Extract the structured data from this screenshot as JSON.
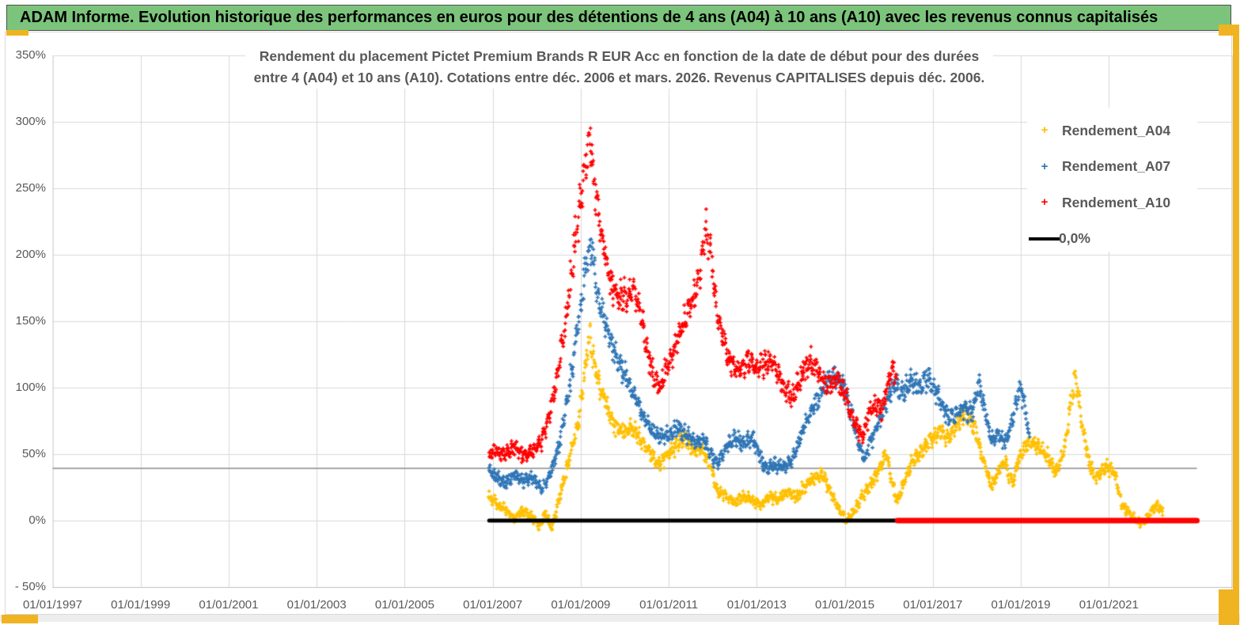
{
  "header": {
    "title": "ADAM Informe. Evolution historique des performances en euros pour des détentions de 4 ans (A04) à 10 ans (A10) avec les revenus connus capitalisés"
  },
  "chart_data": {
    "type": "scatter",
    "title_line1": "Rendement du placement Pictet Premium Brands R EUR Acc en fonction de la date de début pour des durées",
    "title_line2": "entre 4 (A04) et 10 ans (A10). Cotations entre déc. 2006 et mars. 2026. Revenus CAPITALISES depuis déc. 2006.",
    "grid": true,
    "legend_position": "upper right",
    "x_axis": {
      "label_format": "dd/mm/yyyy",
      "tick_labels": [
        "01/01/1997",
        "01/01/1999",
        "01/01/2001",
        "01/01/2003",
        "01/01/2005",
        "01/01/2007",
        "01/01/2009",
        "01/01/2011",
        "01/01/2013",
        "01/01/2015",
        "01/01/2017",
        "01/01/2019",
        "01/01/2021"
      ],
      "tick_years": [
        1997,
        1999,
        2001,
        2003,
        2005,
        2007,
        2009,
        2011,
        2013,
        2015,
        2017,
        2019,
        2021
      ],
      "min_year": 1997.0,
      "max_year": 2023.8
    },
    "y_axis": {
      "tick_labels": [
        "350%",
        "300%",
        "250%",
        "200%",
        "150%",
        "100%",
        "50%",
        "0%",
        "- 50%"
      ],
      "tick_values": [
        350,
        300,
        250,
        200,
        150,
        100,
        50,
        0,
        -50
      ],
      "min": -50,
      "max": 350,
      "unit": "%"
    },
    "legend": [
      {
        "label": "Rendement_A04",
        "color": "#FFC000",
        "marker": "plus"
      },
      {
        "label": "Rendement_A07",
        "color": "#2E75B6",
        "marker": "plus"
      },
      {
        "label": "Rendement_A10",
        "color": "#FF0000",
        "marker": "plus"
      },
      {
        "label": "0,0%",
        "color": "#000000",
        "marker": "line"
      }
    ],
    "series": [
      {
        "name": "Rendement_A04",
        "color": "#FFC000",
        "clamp_max": 148,
        "clamp_min": -13,
        "points_year_pct": [
          [
            2006.92,
            18
          ],
          [
            2007.1,
            12
          ],
          [
            2007.3,
            8
          ],
          [
            2007.5,
            2
          ],
          [
            2007.65,
            8
          ],
          [
            2007.9,
            2
          ],
          [
            2008.05,
            -4
          ],
          [
            2008.2,
            5
          ],
          [
            2008.35,
            -6
          ],
          [
            2008.5,
            15
          ],
          [
            2008.65,
            35
          ],
          [
            2008.8,
            55
          ],
          [
            2008.95,
            75
          ],
          [
            2009.1,
            115
          ],
          [
            2009.2,
            138
          ],
          [
            2009.3,
            120
          ],
          [
            2009.45,
            100
          ],
          [
            2009.6,
            85
          ],
          [
            2009.75,
            72
          ],
          [
            2009.95,
            65
          ],
          [
            2010.15,
            70
          ],
          [
            2010.35,
            62
          ],
          [
            2010.55,
            52
          ],
          [
            2010.75,
            42
          ],
          [
            2010.95,
            48
          ],
          [
            2011.15,
            55
          ],
          [
            2011.35,
            62
          ],
          [
            2011.55,
            52
          ],
          [
            2011.75,
            55
          ],
          [
            2011.95,
            40
          ],
          [
            2012.1,
            22
          ],
          [
            2012.3,
            18
          ],
          [
            2012.5,
            14
          ],
          [
            2012.7,
            18
          ],
          [
            2012.9,
            15
          ],
          [
            2013.1,
            12
          ],
          [
            2013.3,
            18
          ],
          [
            2013.5,
            16
          ],
          [
            2013.7,
            22
          ],
          [
            2013.9,
            18
          ],
          [
            2014.1,
            26
          ],
          [
            2014.3,
            32
          ],
          [
            2014.5,
            35
          ],
          [
            2014.7,
            20
          ],
          [
            2014.9,
            8
          ],
          [
            2015.05,
            0
          ],
          [
            2015.2,
            6
          ],
          [
            2015.4,
            18
          ],
          [
            2015.6,
            28
          ],
          [
            2015.8,
            40
          ],
          [
            2015.95,
            52
          ],
          [
            2016.1,
            25
          ],
          [
            2016.2,
            14
          ],
          [
            2016.35,
            30
          ],
          [
            2016.55,
            45
          ],
          [
            2016.75,
            52
          ],
          [
            2016.95,
            60
          ],
          [
            2017.15,
            68
          ],
          [
            2017.35,
            62
          ],
          [
            2017.55,
            72
          ],
          [
            2017.75,
            82
          ],
          [
            2017.95,
            70
          ],
          [
            2018.15,
            45
          ],
          [
            2018.35,
            25
          ],
          [
            2018.5,
            38
          ],
          [
            2018.65,
            45
          ],
          [
            2018.8,
            28
          ],
          [
            2019.0,
            50
          ],
          [
            2019.2,
            60
          ],
          [
            2019.4,
            55
          ],
          [
            2019.6,
            48
          ],
          [
            2019.8,
            36
          ],
          [
            2020.0,
            55
          ],
          [
            2020.15,
            90
          ],
          [
            2020.25,
            108
          ],
          [
            2020.4,
            70
          ],
          [
            2020.55,
            45
          ],
          [
            2020.7,
            32
          ],
          [
            2020.9,
            40
          ],
          [
            2021.1,
            38
          ],
          [
            2021.3,
            12
          ],
          [
            2021.5,
            4
          ],
          [
            2021.7,
            -2
          ],
          [
            2021.85,
            2
          ],
          [
            2022.0,
            8
          ],
          [
            2022.1,
            12
          ],
          [
            2022.23,
            6
          ]
        ]
      },
      {
        "name": "Rendement_A07",
        "color": "#2E75B6",
        "clamp_max": 219,
        "clamp_min": 18,
        "points_year_pct": [
          [
            2006.92,
            38
          ],
          [
            2007.1,
            32
          ],
          [
            2007.3,
            28
          ],
          [
            2007.5,
            35
          ],
          [
            2007.7,
            30
          ],
          [
            2007.9,
            32
          ],
          [
            2008.1,
            24
          ],
          [
            2008.3,
            35
          ],
          [
            2008.5,
            55
          ],
          [
            2008.7,
            90
          ],
          [
            2008.85,
            125
          ],
          [
            2009.0,
            160
          ],
          [
            2009.15,
            200
          ],
          [
            2009.25,
            208
          ],
          [
            2009.4,
            165
          ],
          [
            2009.55,
            150
          ],
          [
            2009.7,
            132
          ],
          [
            2009.85,
            120
          ],
          [
            2010.0,
            110
          ],
          [
            2010.2,
            95
          ],
          [
            2010.4,
            80
          ],
          [
            2010.6,
            68
          ],
          [
            2010.8,
            62
          ],
          [
            2011.0,
            65
          ],
          [
            2011.2,
            70
          ],
          [
            2011.4,
            65
          ],
          [
            2011.6,
            58
          ],
          [
            2011.8,
            62
          ],
          [
            2011.95,
            50
          ],
          [
            2012.1,
            42
          ],
          [
            2012.3,
            55
          ],
          [
            2012.5,
            62
          ],
          [
            2012.7,
            58
          ],
          [
            2012.9,
            62
          ],
          [
            2013.05,
            50
          ],
          [
            2013.2,
            38
          ],
          [
            2013.4,
            42
          ],
          [
            2013.6,
            40
          ],
          [
            2013.8,
            45
          ],
          [
            2014.0,
            65
          ],
          [
            2014.2,
            80
          ],
          [
            2014.4,
            92
          ],
          [
            2014.6,
            105
          ],
          [
            2014.8,
            108
          ],
          [
            2015.0,
            100
          ],
          [
            2015.15,
            80
          ],
          [
            2015.3,
            60
          ],
          [
            2015.45,
            46
          ],
          [
            2015.6,
            60
          ],
          [
            2015.8,
            75
          ],
          [
            2016.0,
            95
          ],
          [
            2016.15,
            105
          ],
          [
            2016.3,
            95
          ],
          [
            2016.5,
            105
          ],
          [
            2016.7,
            100
          ],
          [
            2016.9,
            108
          ],
          [
            2017.1,
            95
          ],
          [
            2017.3,
            80
          ],
          [
            2017.5,
            78
          ],
          [
            2017.7,
            85
          ],
          [
            2017.9,
            80
          ],
          [
            2018.05,
            105
          ],
          [
            2018.2,
            80
          ],
          [
            2018.35,
            60
          ],
          [
            2018.5,
            65
          ],
          [
            2018.65,
            58
          ],
          [
            2018.8,
            75
          ],
          [
            2019.0,
            100
          ],
          [
            2019.1,
            85
          ],
          [
            2019.2,
            58
          ]
        ]
      },
      {
        "name": "Rendement_A10",
        "color": "#FF0000",
        "clamp_max": 299,
        "clamp_min": 30,
        "points_year_pct": [
          [
            2006.92,
            50
          ],
          [
            2007.1,
            52
          ],
          [
            2007.3,
            50
          ],
          [
            2007.5,
            55
          ],
          [
            2007.7,
            48
          ],
          [
            2007.9,
            52
          ],
          [
            2008.1,
            60
          ],
          [
            2008.3,
            80
          ],
          [
            2008.5,
            115
          ],
          [
            2008.7,
            160
          ],
          [
            2008.85,
            205
          ],
          [
            2009.0,
            240
          ],
          [
            2009.15,
            278
          ],
          [
            2009.22,
            288
          ],
          [
            2009.35,
            240
          ],
          [
            2009.5,
            210
          ],
          [
            2009.65,
            180
          ],
          [
            2009.8,
            170
          ],
          [
            2010.0,
            168
          ],
          [
            2010.2,
            172
          ],
          [
            2010.35,
            160
          ],
          [
            2010.5,
            130
          ],
          [
            2010.65,
            108
          ],
          [
            2010.8,
            100
          ],
          [
            2010.95,
            115
          ],
          [
            2011.1,
            128
          ],
          [
            2011.3,
            145
          ],
          [
            2011.5,
            162
          ],
          [
            2011.7,
            185
          ],
          [
            2011.85,
            220
          ],
          [
            2011.95,
            205
          ],
          [
            2012.1,
            155
          ],
          [
            2012.25,
            135
          ],
          [
            2012.4,
            118
          ],
          [
            2012.6,
            112
          ],
          [
            2012.8,
            120
          ],
          [
            2013.0,
            115
          ],
          [
            2013.2,
            120
          ],
          [
            2013.4,
            118
          ],
          [
            2013.6,
            100
          ],
          [
            2013.8,
            92
          ],
          [
            2014.0,
            108
          ],
          [
            2014.2,
            120
          ],
          [
            2014.4,
            112
          ],
          [
            2014.6,
            100
          ],
          [
            2014.8,
            108
          ],
          [
            2015.0,
            95
          ],
          [
            2015.2,
            75
          ],
          [
            2015.4,
            62
          ],
          [
            2015.55,
            80
          ],
          [
            2015.7,
            88
          ],
          [
            2015.85,
            82
          ],
          [
            2015.95,
            100
          ],
          [
            2016.08,
            115
          ],
          [
            2016.17,
            108
          ]
        ]
      }
    ],
    "lines": [
      {
        "name": "zero-line-known",
        "label": "0,0%",
        "color": "#000000",
        "value": 0,
        "from_year": 2006.92,
        "to_year": 2016.2,
        "width": 5
      },
      {
        "name": "zero-line-future",
        "label": "",
        "color": "#FF0000",
        "value": 0,
        "from_year": 2016.2,
        "to_year": 2023.0,
        "width": 7
      },
      {
        "name": "benchmark-line",
        "label": "",
        "color": "#a6a6a6",
        "value": 39.3,
        "from_year": 1997.0,
        "to_year": 2023.0,
        "width": 2
      }
    ]
  }
}
